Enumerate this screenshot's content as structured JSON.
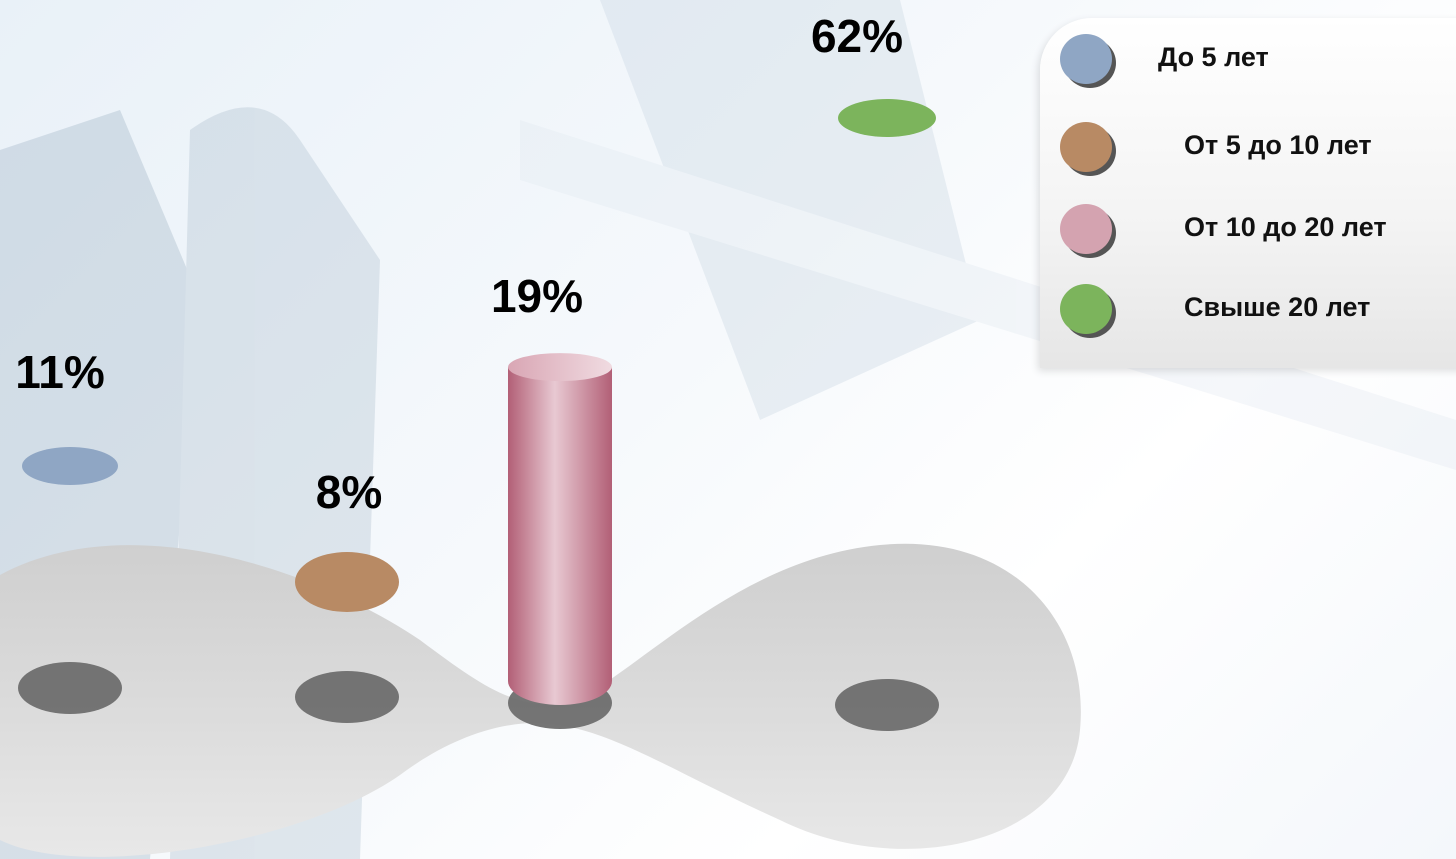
{
  "chart_data": {
    "type": "bar",
    "categories": [
      "До 5 лет",
      "От 5 до 10 лет",
      "От 10 до 20 лет",
      "Свыше 20 лет"
    ],
    "values": [
      11,
      8,
      19,
      62
    ],
    "value_labels": [
      "11%",
      "8%",
      "19%",
      "62%"
    ],
    "title": "",
    "xlabel": "",
    "ylabel": "",
    "legend_position": "top-right",
    "grid": false,
    "colors": [
      "#8fa6c4",
      "#b88a64",
      "#d4a3b0",
      "#7cb45c"
    ]
  }
}
